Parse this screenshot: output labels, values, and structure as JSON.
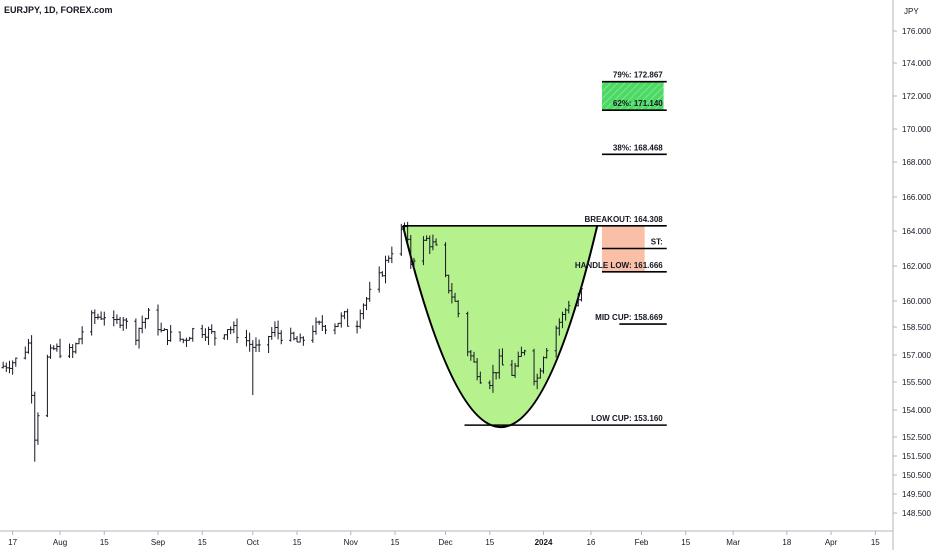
{
  "header": {
    "title": "EURJPY, 1D, FOREX.com"
  },
  "axis": {
    "currency": "JPY"
  },
  "chart_data": {
    "type": "ohlc",
    "title": "EURJPY, 1D, FOREX.com",
    "ylabel": "JPY",
    "ylim": [
      147.5,
      177.2
    ],
    "grid": false,
    "y_ticks": [
      "176.000",
      "174.000",
      "172.000",
      "170.000",
      "168.000",
      "166.000",
      "164.000",
      "162.000",
      "160.000",
      "158.500",
      "157.000",
      "155.500",
      "154.000",
      "152.500",
      "151.500",
      "150.500",
      "149.500",
      "148.500"
    ],
    "y_tick_values": [
      176,
      174,
      172,
      170,
      168,
      166,
      164,
      162,
      160,
      158.5,
      157,
      155.5,
      154,
      152.5,
      151.5,
      150.5,
      149.5,
      148.5
    ],
    "x_ticks": [
      {
        "label": "17",
        "day": -46
      },
      {
        "label": "Aug",
        "day": -31
      },
      {
        "label": "15",
        "day": -17
      },
      {
        "label": "Sep",
        "day": 0
      },
      {
        "label": "15",
        "day": 14
      },
      {
        "label": "Oct",
        "day": 30
      },
      {
        "label": "15",
        "day": 44
      },
      {
        "label": "Nov",
        "day": 61
      },
      {
        "label": "15",
        "day": 75
      },
      {
        "label": "Dec",
        "day": 91
      },
      {
        "label": "15",
        "day": 105
      },
      {
        "label": "2024",
        "day": 122,
        "bold": true
      },
      {
        "label": "16",
        "day": 137
      },
      {
        "label": "Feb",
        "day": 153
      },
      {
        "label": "15",
        "day": 167
      },
      {
        "label": "Mar",
        "day": 182
      },
      {
        "label": "18",
        "day": 199
      },
      {
        "label": "Apr",
        "day": 213
      },
      {
        "label": "15",
        "day": 227
      }
    ],
    "price_path": [
      [
        -50,
        156.3
      ],
      [
        -44,
        156.8
      ],
      [
        -41,
        157.6
      ],
      [
        -39,
        152.6
      ],
      [
        -36,
        156.5
      ],
      [
        -33,
        157.3
      ],
      [
        -30,
        157.2
      ],
      [
        -27,
        157.1
      ],
      [
        -24,
        158.3
      ],
      [
        -21,
        159.0
      ],
      [
        -17,
        159.2
      ],
      [
        -14,
        158.6
      ],
      [
        -11,
        159.1
      ],
      [
        -8,
        157.8
      ],
      [
        -5,
        158.8
      ],
      [
        -2,
        159.4
      ],
      [
        1,
        158.2
      ],
      [
        4,
        158.0
      ],
      [
        8,
        157.8
      ],
      [
        12,
        158.5
      ],
      [
        15,
        158.3
      ],
      [
        18,
        158.0
      ],
      [
        22,
        158.5
      ],
      [
        26,
        158.1
      ],
      [
        29,
        157.6
      ],
      [
        32,
        157.2
      ],
      [
        34,
        157.9
      ],
      [
        37,
        158.3
      ],
      [
        41,
        157.9
      ],
      [
        45,
        157.6
      ],
      [
        48,
        158.4
      ],
      [
        52,
        158.6
      ],
      [
        56,
        158.7
      ],
      [
        59,
        159.1
      ],
      [
        62,
        158.0
      ],
      [
        64,
        159.6
      ],
      [
        67,
        160.4
      ],
      [
        70,
        161.3
      ],
      [
        73,
        162.6
      ],
      [
        76,
        163.6
      ],
      [
        78,
        164.2
      ],
      [
        80,
        162.2
      ],
      [
        82,
        162.9
      ],
      [
        85,
        163.5
      ],
      [
        87,
        163.2
      ],
      [
        89,
        162.7
      ],
      [
        91,
        161.2
      ],
      [
        94,
        159.9
      ],
      [
        96,
        158.7
      ],
      [
        98,
        157.3
      ],
      [
        100,
        156.5
      ],
      [
        102,
        155.8
      ],
      [
        104,
        155.3
      ],
      [
        106,
        155.9
      ],
      [
        108,
        156.6
      ],
      [
        110,
        156.2
      ],
      [
        112,
        156.0
      ],
      [
        114,
        156.6
      ],
      [
        116,
        157.4
      ],
      [
        118,
        156.0
      ],
      [
        120,
        155.7
      ],
      [
        122,
        157.1
      ],
      [
        124,
        157.9
      ],
      [
        126,
        158.5
      ],
      [
        128,
        159.1
      ],
      [
        130,
        159.9
      ],
      [
        132,
        159.5
      ],
      [
        134,
        160.7
      ]
    ],
    "cup_shape": {
      "left_rim": {
        "day": 77.5,
        "value": 164.308
      },
      "bottom": {
        "day": 108.5,
        "value": 153.05
      },
      "right_rim": {
        "day": 139,
        "value": 164.308
      }
    },
    "levels": [
      {
        "label": "79%: 172.867",
        "value": 172.867,
        "x0": 140.5,
        "x1": 161
      },
      {
        "label": "62%: 171.140",
        "value": 171.14,
        "x0": 140.5,
        "x1": 161
      },
      {
        "label": "38%: 168.468",
        "value": 168.468,
        "x0": 140.5,
        "x1": 161
      },
      {
        "label": "BREAKOUT: 164.308",
        "value": 164.308,
        "x0": 77.5,
        "x1": 161
      },
      {
        "label": "ST:",
        "value": 163.0,
        "x0": 140.5,
        "x1": 161
      },
      {
        "label": "HANDLE LOW: 161.666",
        "value": 161.666,
        "x0": 140.5,
        "x1": 161
      },
      {
        "label": "MID CUP: 158.669",
        "value": 158.669,
        "x0": 146,
        "x1": 161
      },
      {
        "label": "LOW CUP: 153.160",
        "value": 153.16,
        "x0": 97,
        "x1": 161
      }
    ],
    "zones": [
      {
        "name": "target-zone",
        "from": 171.14,
        "to": 172.867,
        "x0": 140.5,
        "x1": 160,
        "color": "#4cd964"
      },
      {
        "name": "handle-zone",
        "from": 161.666,
        "to": 164.308,
        "x0": 140.5,
        "x1": 154,
        "color": "#f9bfa7"
      }
    ],
    "colors": {
      "candles": "#131722",
      "cup_fill": "#b5f28e",
      "cup_stroke": "#000000",
      "axis": "#b2b5be"
    }
  }
}
